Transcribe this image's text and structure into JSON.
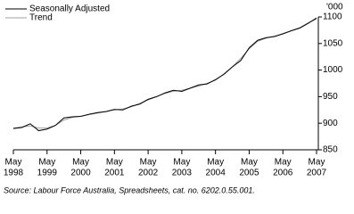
{
  "chart_data": {
    "type": "line",
    "unit_label": "'000",
    "x": [
      "1998-05",
      "1998-08",
      "1998-11",
      "1999-02",
      "1999-05",
      "1999-08",
      "1999-11",
      "2000-02",
      "2000-05",
      "2000-08",
      "2000-11",
      "2001-02",
      "2001-05",
      "2001-08",
      "2001-11",
      "2002-02",
      "2002-05",
      "2002-08",
      "2002-11",
      "2003-02",
      "2003-05",
      "2003-08",
      "2003-11",
      "2004-02",
      "2004-05",
      "2004-08",
      "2004-11",
      "2005-02",
      "2005-05",
      "2005-08",
      "2005-11",
      "2006-02",
      "2006-05",
      "2006-08",
      "2006-11",
      "2007-02",
      "2007-05"
    ],
    "series": [
      {
        "name": "Seasonally Adjusted",
        "color": "#000000",
        "values": [
          890,
          892,
          899,
          886,
          889,
          896,
          910,
          912,
          913,
          917,
          920,
          922,
          926,
          925,
          932,
          936,
          945,
          950,
          957,
          962,
          960,
          966,
          972,
          974,
          982,
          992,
          1006,
          1018,
          1042,
          1056,
          1061,
          1063,
          1068,
          1074,
          1079,
          1088,
          1098
        ]
      },
      {
        "name": "Trend",
        "color": "#a0a0a0",
        "values": [
          891,
          893,
          895,
          891,
          891,
          896,
          906,
          911,
          913,
          916,
          919,
          922,
          925,
          927,
          931,
          937,
          944,
          950,
          956,
          960,
          962,
          966,
          970,
          975,
          981,
          993,
          1006,
          1022,
          1040,
          1054,
          1060,
          1064,
          1069,
          1074,
          1080,
          1089,
          1096
        ]
      }
    ],
    "ylim": [
      850,
      1100
    ],
    "yticks": [
      850,
      900,
      950,
      1000,
      1050,
      1100
    ],
    "xlim": [
      "1998-05",
      "2007-05"
    ],
    "xticks": [
      {
        "value": "1998-05",
        "label": "May",
        "year": "1998"
      },
      {
        "value": "1999-05",
        "label": "May",
        "year": "1999"
      },
      {
        "value": "2000-05",
        "label": "May",
        "year": "2000"
      },
      {
        "value": "2001-05",
        "label": "May",
        "year": "2001"
      },
      {
        "value": "2002-05",
        "label": "May",
        "year": "2002"
      },
      {
        "value": "2003-05",
        "label": "May",
        "year": "2003"
      },
      {
        "value": "2004-05",
        "label": "May",
        "year": "2004"
      },
      {
        "value": "2005-05",
        "label": "May",
        "year": "2005"
      },
      {
        "value": "2006-05",
        "label": "May",
        "year": "2006"
      },
      {
        "value": "2007-05",
        "label": "May",
        "year": "2007"
      }
    ],
    "source": "Source: Labour Force Australia, Spreadsheets, cat. no. 6202.0.55.001."
  }
}
